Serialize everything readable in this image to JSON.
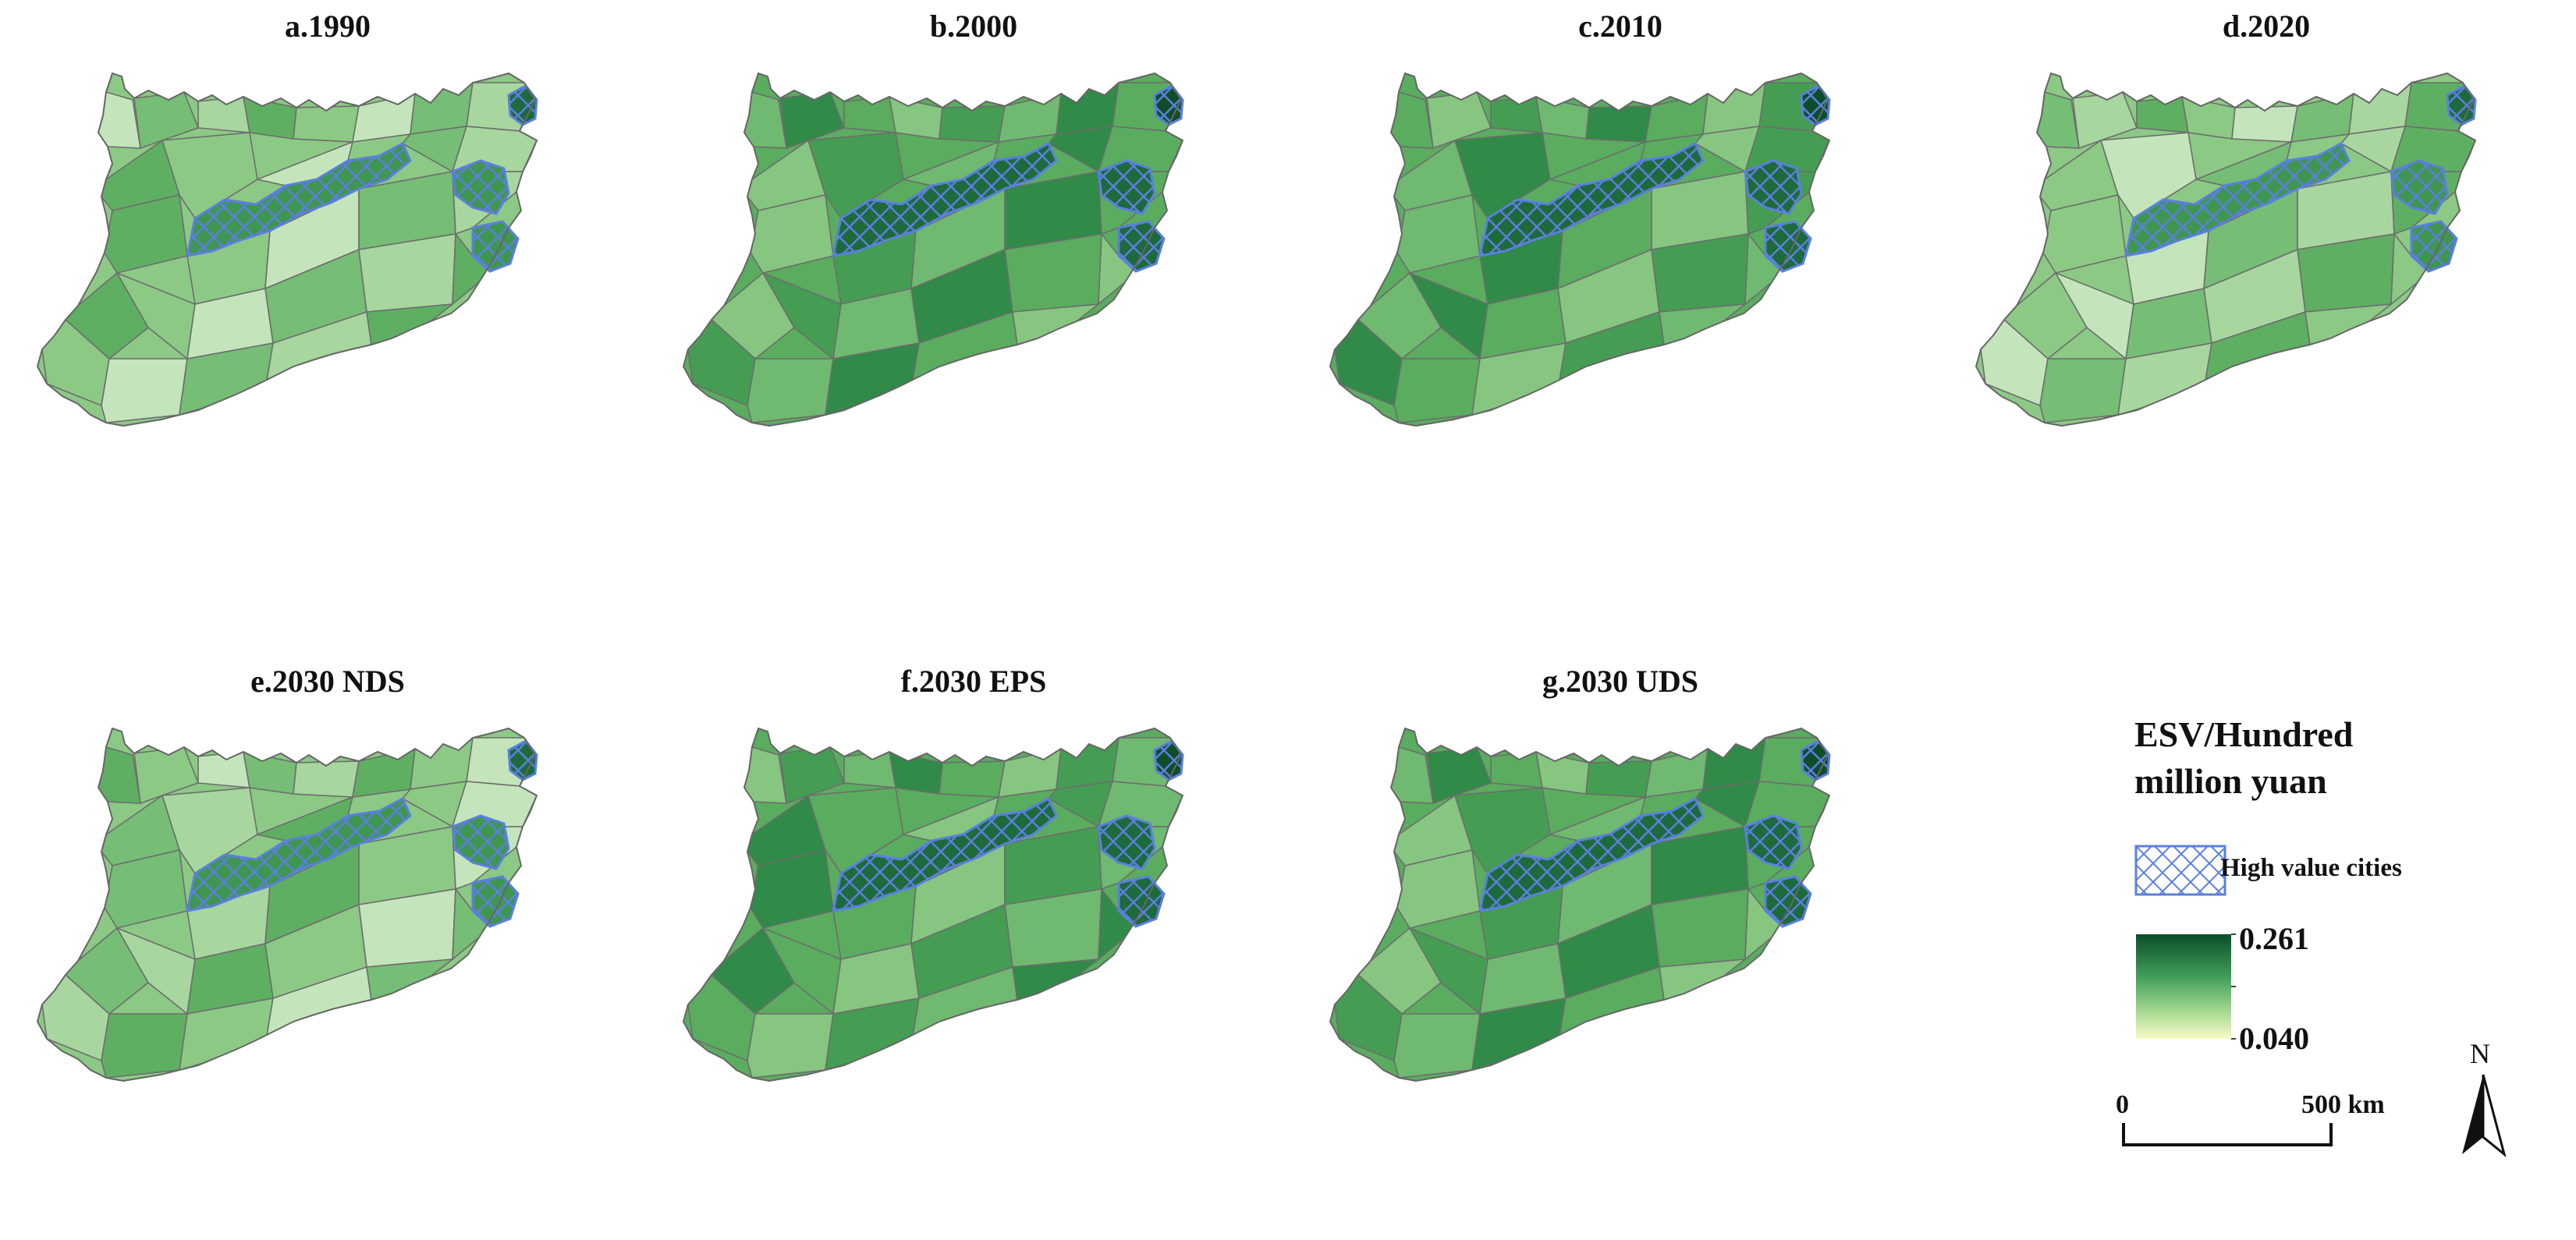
{
  "panels": [
    {
      "id": "a",
      "title": "a.1990",
      "palette": [
        "#c4e5bb",
        "#a7d69f",
        "#8cc985",
        "#76bd75",
        "#5faf63"
      ],
      "core": "#3f9650",
      "high": "#1d6a3b"
    },
    {
      "id": "b",
      "title": "b.2000",
      "palette": [
        "#86c680",
        "#6fb970",
        "#5aac5f",
        "#459d53",
        "#2f8b47"
      ],
      "core": "#1d6a3b",
      "high": "#0f4d2a"
    },
    {
      "id": "c",
      "title": "c.2010",
      "palette": [
        "#86c680",
        "#6fb970",
        "#5aac5f",
        "#459d53",
        "#2f8b47"
      ],
      "core": "#1d6a3b",
      "high": "#0f4d2a"
    },
    {
      "id": "d",
      "title": "d.2020",
      "palette": [
        "#c4e5bb",
        "#a7d69f",
        "#8cc985",
        "#76bd75",
        "#5faf63"
      ],
      "core": "#3f9650",
      "high": "#1d6a3b"
    },
    {
      "id": "e",
      "title": "e.2030 NDS",
      "palette": [
        "#c4e5bb",
        "#a7d69f",
        "#8cc985",
        "#76bd75",
        "#5faf63"
      ],
      "core": "#3f9650",
      "high": "#1d6a3b"
    },
    {
      "id": "f",
      "title": "f.2030 EPS",
      "palette": [
        "#86c680",
        "#6fb970",
        "#5aac5f",
        "#459d53",
        "#2f8b47"
      ],
      "core": "#1d6a3b",
      "high": "#0f4d2a"
    },
    {
      "id": "g",
      "title": "g.2030 UDS",
      "palette": [
        "#86c680",
        "#6fb970",
        "#5aac5f",
        "#459d53",
        "#2f8b47"
      ],
      "core": "#1d6a3b",
      "high": "#0f4d2a"
    }
  ],
  "legend": {
    "title_line1": "ESV/Hundred",
    "title_line2": "million yuan",
    "high_value_label": "High value cities",
    "max_value": "0.261",
    "min_value": "0.040",
    "ramp_colors": [
      "#0c4d2b",
      "#3f9d57",
      "#9fd58d",
      "#f8fcc6"
    ],
    "hatch_color": "#5b7fe0"
  },
  "scale": {
    "start_label": "0",
    "end_label": "500 km"
  },
  "north_label": "N"
}
